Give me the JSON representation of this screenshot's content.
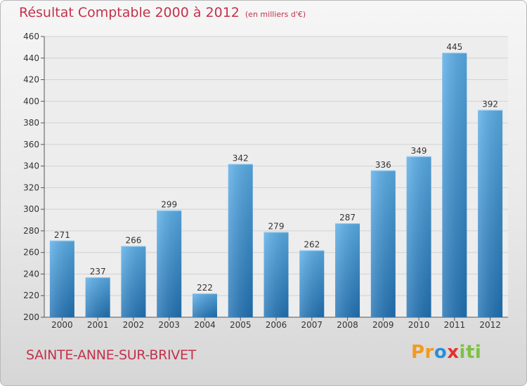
{
  "title": "Résultat Comptable 2000 à 2012",
  "subtitle": "(en milliers d'€)",
  "commune": "SAINTE-ANNE-SUR-BRIVET",
  "logo": "Proxiti",
  "colors": {
    "bar_top": "#5aaee8",
    "bar_bottom": "#2273b5",
    "title": "#c4314b"
  },
  "chart_data": {
    "type": "bar",
    "title": "Résultat Comptable 2000 à 2012",
    "subtitle": "(en milliers d'€)",
    "xlabel": "",
    "ylabel": "",
    "categories": [
      "2000",
      "2001",
      "2002",
      "2003",
      "2004",
      "2005",
      "2006",
      "2007",
      "2008",
      "2009",
      "2010",
      "2011",
      "2012"
    ],
    "values": [
      271,
      237,
      266,
      299,
      222,
      342,
      279,
      262,
      287,
      336,
      349,
      445,
      392
    ],
    "ylim": [
      200,
      460
    ],
    "yticks": [
      200,
      220,
      240,
      260,
      280,
      300,
      320,
      340,
      360,
      380,
      400,
      420,
      440,
      460
    ],
    "grid": true
  }
}
